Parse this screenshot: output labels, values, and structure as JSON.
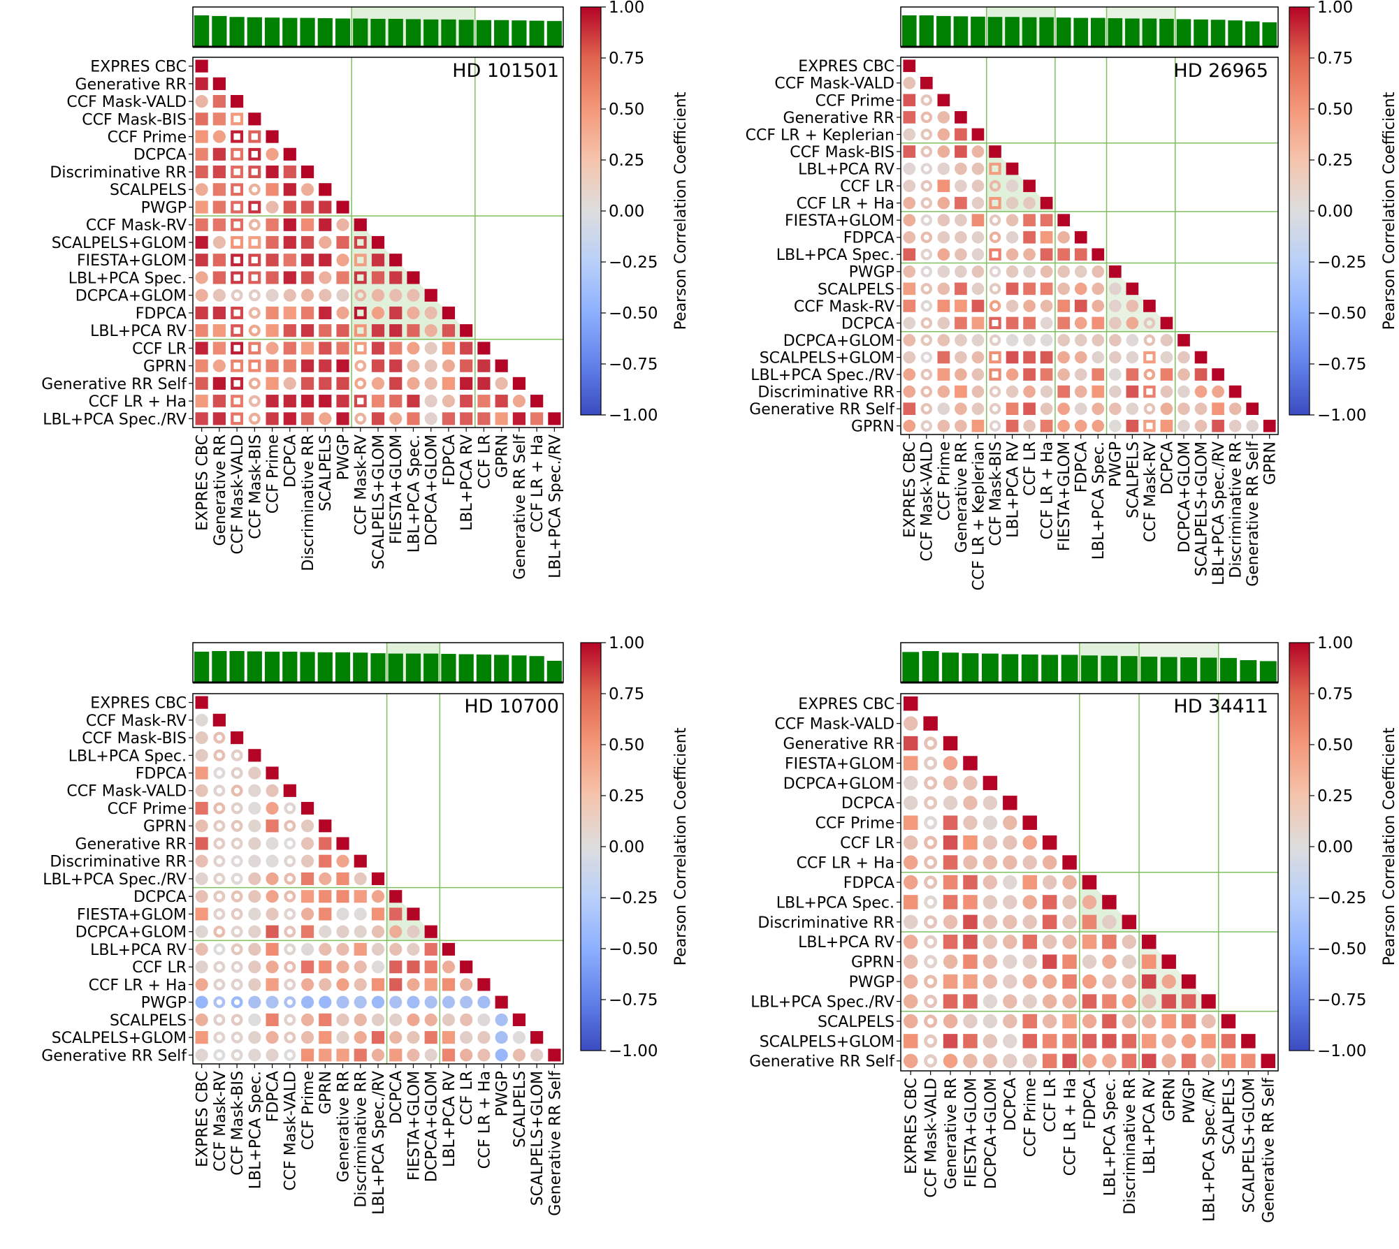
{
  "colorbar": {
    "label": "Pearson Correlation Coefficient",
    "ticks": [
      "1.00",
      "0.75",
      "0.50",
      "0.25",
      "0.00",
      "−0.25",
      "−0.50",
      "−0.75",
      "−1.00"
    ],
    "range": [
      -1,
      1
    ]
  },
  "colors": {
    "bar": "#008000",
    "highlight": "#c9e3be",
    "group_line": "#7fbf5f",
    "positive": "#b40426",
    "neutral": "#dddddd",
    "negative": "#3b4cc0"
  },
  "chart_data": [
    {
      "type": "heatmap",
      "title": "HD 101501",
      "labels": [
        "EXPRES CBC",
        "Generative RR",
        "CCF Mask-VALD",
        "CCF Mask-BIS",
        "CCF Prime",
        "DCPCA",
        "Discriminative RR",
        "SCALPELS",
        "PWGP",
        "CCF Mask-RV",
        "SCALPELS+GLOM",
        "FIESTA+GLOM",
        "LBL+PCA Spec.",
        "DCPCA+GLOM",
        "FDPCA",
        "LBL+PCA RV",
        "CCF LR",
        "GPRN",
        "Generative RR Self",
        "CCF LR + Ha",
        "LBL+PCA Spec./RV"
      ],
      "groups": [
        9,
        16
      ],
      "highlight_block": [
        9,
        16
      ],
      "bar_values": [
        1.0,
        0.98,
        0.95,
        0.94,
        0.93,
        0.92,
        0.92,
        0.91,
        0.9,
        0.9,
        0.89,
        0.89,
        0.88,
        0.87,
        0.87,
        0.86,
        0.85,
        0.85,
        0.84,
        0.83,
        0.82
      ],
      "ring_columns": [
        2,
        3,
        9
      ],
      "weak_columns": [
        13
      ],
      "base_corr": 0.6
    },
    {
      "type": "heatmap",
      "title": "HD 26965",
      "labels": [
        "EXPRES CBC",
        "CCF Mask-VALD",
        "CCF Prime",
        "Generative RR",
        "CCF LR + Keplerian",
        "CCF Mask-BIS",
        "LBL+PCA RV",
        "CCF LR",
        "CCF LR + Ha",
        "FIESTA+GLOM",
        "FDPCA",
        "LBL+PCA Spec.",
        "PWGP",
        "SCALPELS",
        "CCF Mask-RV",
        "DCPCA",
        "DCPCA+GLOM",
        "SCALPELS+GLOM",
        "LBL+PCA Spec./RV",
        "Discriminative RR",
        "Generative RR Self",
        "GPRN"
      ],
      "groups": [
        5,
        9,
        12,
        16
      ],
      "highlight_block": [
        5,
        9
      ],
      "highlight_block_2": [
        12,
        16
      ],
      "bar_values": [
        1.0,
        1.0,
        0.98,
        0.97,
        0.96,
        0.95,
        0.95,
        0.94,
        0.94,
        0.93,
        0.92,
        0.92,
        0.91,
        0.9,
        0.9,
        0.89,
        0.88,
        0.87,
        0.86,
        0.84,
        0.81,
        0.78
      ],
      "ring_columns": [
        1,
        5,
        14
      ],
      "weak_columns": [
        1,
        12,
        16
      ],
      "base_corr": 0.4
    },
    {
      "type": "heatmap",
      "title": "HD 10700",
      "labels": [
        "EXPRES CBC",
        "CCF Mask-RV",
        "CCF Mask-BIS",
        "LBL+PCA Spec.",
        "FDPCA",
        "CCF Mask-VALD",
        "CCF Prime",
        "GPRN",
        "Generative RR",
        "Discriminative RR",
        "LBL+PCA Spec./RV",
        "DCPCA",
        "FIESTA+GLOM",
        "DCPCA+GLOM",
        "LBL+PCA RV",
        "CCF LR",
        "CCF LR + Ha",
        "PWGP",
        "SCALPELS",
        "SCALPELS+GLOM",
        "Generative RR Self"
      ],
      "groups": [
        11,
        14
      ],
      "highlight_block": [
        11,
        14
      ],
      "bar_values": [
        0.98,
        1.0,
        1.0,
        0.99,
        0.98,
        0.98,
        0.97,
        0.96,
        0.96,
        0.95,
        0.93,
        0.92,
        0.92,
        0.92,
        0.91,
        0.9,
        0.89,
        0.88,
        0.86,
        0.84,
        0.69
      ],
      "ring_columns": [
        1,
        2,
        5
      ],
      "weak_columns": [
        1,
        2,
        3,
        5
      ],
      "negative_row": 17,
      "base_corr": 0.35
    },
    {
      "type": "heatmap",
      "title": "HD 34411",
      "labels": [
        "EXPRES CBC",
        "CCF Mask-VALD",
        "Generative RR",
        "FIESTA+GLOM",
        "DCPCA+GLOM",
        "DCPCA",
        "CCF Prime",
        "CCF LR",
        "CCF LR + Ha",
        "FDPCA",
        "LBL+PCA Spec.",
        "Discriminative RR",
        "LBL+PCA RV",
        "GPRN",
        "PWGP",
        "LBL+PCA Spec./RV",
        "SCALPELS",
        "SCALPELS+GLOM",
        "Generative RR Self"
      ],
      "groups": [
        9,
        12,
        16
      ],
      "highlight_block": [
        9,
        12
      ],
      "highlight_block_2": [
        12,
        16
      ],
      "bar_values": [
        0.97,
        1.0,
        0.95,
        0.93,
        0.92,
        0.9,
        0.89,
        0.88,
        0.88,
        0.86,
        0.85,
        0.84,
        0.82,
        0.81,
        0.8,
        0.79,
        0.78,
        0.71,
        0.68
      ],
      "ring_columns": [
        1
      ],
      "weak_columns": [
        1,
        4,
        5
      ],
      "base_corr": 0.45
    }
  ]
}
